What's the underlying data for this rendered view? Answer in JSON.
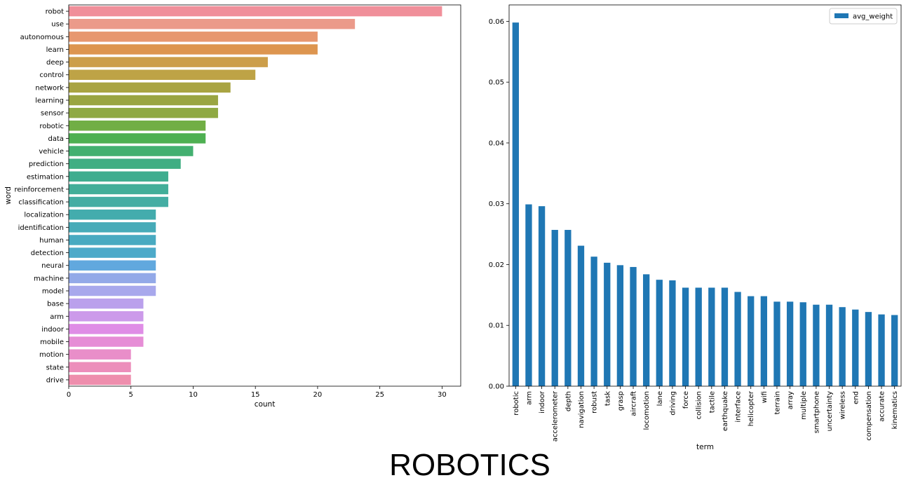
{
  "suptitle": "ROBOTICS",
  "chart_data": [
    {
      "type": "bar",
      "orientation": "horizontal",
      "xlabel": "count",
      "ylabel": "word",
      "xlim": [
        0,
        31.5
      ],
      "xticks": [
        0,
        5,
        10,
        15,
        20,
        25,
        30
      ],
      "categories": [
        "robot",
        "use",
        "autonomous",
        "learn",
        "deep",
        "control",
        "network",
        "learning",
        "sensor",
        "robotic",
        "data",
        "vehicle",
        "prediction",
        "estimation",
        "reinforcement",
        "classification",
        "localization",
        "identification",
        "human",
        "detection",
        "neural",
        "machine",
        "model",
        "base",
        "arm",
        "indoor",
        "mobile",
        "motion",
        "state",
        "drive"
      ],
      "values": [
        30,
        23,
        20,
        20,
        16,
        15,
        13,
        12,
        12,
        11,
        11,
        10,
        9,
        8,
        8,
        8,
        7,
        7,
        7,
        7,
        7,
        7,
        7,
        6,
        6,
        6,
        6,
        5,
        5,
        5
      ],
      "colors": [
        "#f08f9a",
        "#eb9a8a",
        "#e7976f",
        "#dd954f",
        "#cc9e4a",
        "#bea346",
        "#a9a442",
        "#9aa542",
        "#8fa943",
        "#71ae45",
        "#4eb052",
        "#43b070",
        "#40ae83",
        "#3fad8f",
        "#42ae99",
        "#44ada3",
        "#43acad",
        "#47abb8",
        "#48aac1",
        "#4daac9",
        "#61a8de",
        "#93a9e8",
        "#a8a8ec",
        "#baa0ec",
        "#cc9aea",
        "#df8de6",
        "#e68dd6",
        "#e98ec9",
        "#ec8ebb",
        "#ee8ead"
      ]
    },
    {
      "type": "bar",
      "orientation": "vertical",
      "xlabel": "term",
      "ylabel": "",
      "ylim": [
        0,
        0.0627
      ],
      "yticks": [
        0.0,
        0.01,
        0.02,
        0.03,
        0.04,
        0.05,
        0.06
      ],
      "ytick_labels": [
        "0.00",
        "0.01",
        "0.02",
        "0.03",
        "0.04",
        "0.05",
        "0.06"
      ],
      "legend": {
        "label": "avg_weight",
        "position": "top-right"
      },
      "color": "#1f77b4",
      "series": [
        {
          "name": "avg_weight",
          "categories": [
            "robotic",
            "arm",
            "indoor",
            "accelerometer",
            "depth",
            "navigation",
            "robust",
            "task",
            "grasp",
            "aircraft",
            "locomotion",
            "lane",
            "driving",
            "force",
            "collision",
            "tactile",
            "earthquake",
            "interface",
            "helicopter",
            "wifi",
            "terrain",
            "array",
            "multiple",
            "smartphone",
            "uncertainty",
            "wireless",
            "end",
            "compensation",
            "accurate",
            "kinematics"
          ],
          "values": [
            0.0598,
            0.0299,
            0.0296,
            0.0257,
            0.0257,
            0.0231,
            0.0213,
            0.0203,
            0.0199,
            0.0196,
            0.0184,
            0.0175,
            0.0174,
            0.0162,
            0.0162,
            0.0162,
            0.0162,
            0.0155,
            0.0148,
            0.0148,
            0.0139,
            0.0139,
            0.0138,
            0.0134,
            0.0134,
            0.013,
            0.0126,
            0.0122,
            0.0118,
            0.0117
          ]
        }
      ]
    }
  ]
}
